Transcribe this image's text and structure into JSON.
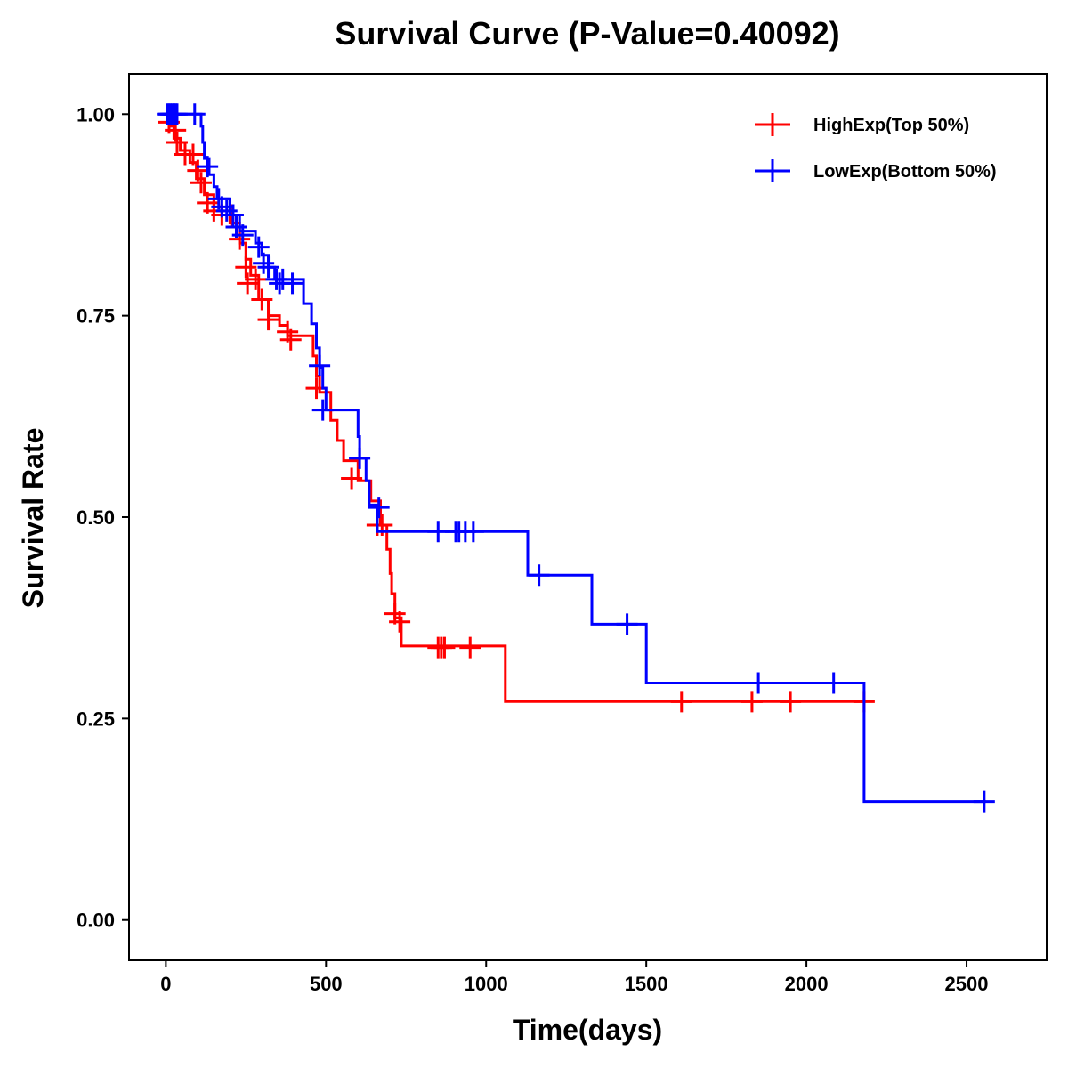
{
  "chart_data": {
    "type": "line",
    "subtype": "kaplan-meier-step",
    "title": "Survival Curve (P-Value=0.40092)",
    "xlabel": "Time(days)",
    "ylabel": "Survival Rate",
    "xlim": [
      -115,
      2750
    ],
    "ylim": [
      -0.05,
      1.05
    ],
    "xticks": [
      0,
      500,
      1000,
      1500,
      2000,
      2500
    ],
    "xtick_labels": [
      "0",
      "500",
      "1000",
      "1500",
      "2000",
      "2500"
    ],
    "yticks": [
      0,
      0.25,
      0.5,
      0.75,
      1
    ],
    "ytick_labels": [
      "0.00",
      "0.25",
      "0.50",
      "0.75",
      "1.00"
    ],
    "legend_position": "top-right",
    "series": [
      {
        "name": "HighExp(Top 50%)",
        "color": "#ff0000",
        "steps": [
          [
            0,
            1.0
          ],
          [
            15,
            0.985
          ],
          [
            25,
            0.97
          ],
          [
            45,
            0.955
          ],
          [
            75,
            0.94
          ],
          [
            95,
            0.92
          ],
          [
            120,
            0.9
          ],
          [
            150,
            0.885
          ],
          [
            175,
            0.875
          ],
          [
            200,
            0.865
          ],
          [
            230,
            0.84
          ],
          [
            250,
            0.82
          ],
          [
            265,
            0.8
          ],
          [
            290,
            0.77
          ],
          [
            320,
            0.75
          ],
          [
            355,
            0.738
          ],
          [
            380,
            0.725
          ],
          [
            460,
            0.7
          ],
          [
            470,
            0.675
          ],
          [
            480,
            0.655
          ],
          [
            515,
            0.62
          ],
          [
            535,
            0.595
          ],
          [
            555,
            0.57
          ],
          [
            600,
            0.545
          ],
          [
            640,
            0.52
          ],
          [
            670,
            0.49
          ],
          [
            690,
            0.46
          ],
          [
            700,
            0.43
          ],
          [
            705,
            0.405
          ],
          [
            715,
            0.375
          ],
          [
            735,
            0.34
          ],
          [
            1060,
            0.271
          ],
          [
            2185,
            0.271
          ]
        ],
        "censored": [
          [
            10,
            0.99
          ],
          [
            30,
            0.98
          ],
          [
            35,
            0.965
          ],
          [
            60,
            0.95
          ],
          [
            85,
            0.95
          ],
          [
            100,
            0.93
          ],
          [
            110,
            0.915
          ],
          [
            130,
            0.89
          ],
          [
            150,
            0.88
          ],
          [
            175,
            0.875
          ],
          [
            205,
            0.875
          ],
          [
            220,
            0.86
          ],
          [
            230,
            0.845
          ],
          [
            250,
            0.81
          ],
          [
            255,
            0.79
          ],
          [
            280,
            0.795
          ],
          [
            300,
            0.77
          ],
          [
            320,
            0.745
          ],
          [
            380,
            0.73
          ],
          [
            390,
            0.72
          ],
          [
            470,
            0.66
          ],
          [
            580,
            0.548
          ],
          [
            660,
            0.49
          ],
          [
            675,
            0.49
          ],
          [
            715,
            0.38
          ],
          [
            730,
            0.37
          ],
          [
            850,
            0.338
          ],
          [
            860,
            0.338
          ],
          [
            870,
            0.338
          ],
          [
            950,
            0.338
          ],
          [
            1610,
            0.271
          ],
          [
            1830,
            0.271
          ],
          [
            1950,
            0.271
          ],
          [
            2180,
            0.271
          ]
        ]
      },
      {
        "name": "LowExp(Bottom 50%)",
        "color": "#0000ff",
        "steps": [
          [
            0,
            1.0
          ],
          [
            110,
            0.985
          ],
          [
            115,
            0.965
          ],
          [
            120,
            0.945
          ],
          [
            135,
            0.925
          ],
          [
            150,
            0.91
          ],
          [
            160,
            0.895
          ],
          [
            200,
            0.875
          ],
          [
            230,
            0.855
          ],
          [
            280,
            0.84
          ],
          [
            300,
            0.825
          ],
          [
            320,
            0.81
          ],
          [
            340,
            0.795
          ],
          [
            430,
            0.765
          ],
          [
            455,
            0.74
          ],
          [
            470,
            0.71
          ],
          [
            480,
            0.685
          ],
          [
            490,
            0.66
          ],
          [
            500,
            0.633
          ],
          [
            600,
            0.6
          ],
          [
            605,
            0.573
          ],
          [
            625,
            0.545
          ],
          [
            635,
            0.515
          ],
          [
            660,
            0.482
          ],
          [
            1130,
            0.428
          ],
          [
            1330,
            0.367
          ],
          [
            1500,
            0.294
          ],
          [
            2180,
            0.147
          ],
          [
            2560,
            0.147
          ]
        ],
        "censored": [
          [
            5,
            1.0
          ],
          [
            10,
            1.0
          ],
          [
            15,
            1.0
          ],
          [
            20,
            1.0
          ],
          [
            25,
            1.0
          ],
          [
            30,
            1.0
          ],
          [
            35,
            1.0
          ],
          [
            90,
            1.0
          ],
          [
            130,
            0.935
          ],
          [
            165,
            0.895
          ],
          [
            175,
            0.885
          ],
          [
            190,
            0.88
          ],
          [
            210,
            0.875
          ],
          [
            220,
            0.86
          ],
          [
            240,
            0.85
          ],
          [
            290,
            0.835
          ],
          [
            305,
            0.815
          ],
          [
            320,
            0.81
          ],
          [
            345,
            0.795
          ],
          [
            355,
            0.79
          ],
          [
            365,
            0.795
          ],
          [
            395,
            0.79
          ],
          [
            480,
            0.688
          ],
          [
            490,
            0.633
          ],
          [
            605,
            0.573
          ],
          [
            665,
            0.512
          ],
          [
            850,
            0.482
          ],
          [
            905,
            0.482
          ],
          [
            915,
            0.482
          ],
          [
            935,
            0.482
          ],
          [
            960,
            0.482
          ],
          [
            1165,
            0.428
          ],
          [
            1440,
            0.367
          ],
          [
            1850,
            0.294
          ],
          [
            2085,
            0.294
          ],
          [
            2555,
            0.147
          ]
        ]
      }
    ]
  }
}
